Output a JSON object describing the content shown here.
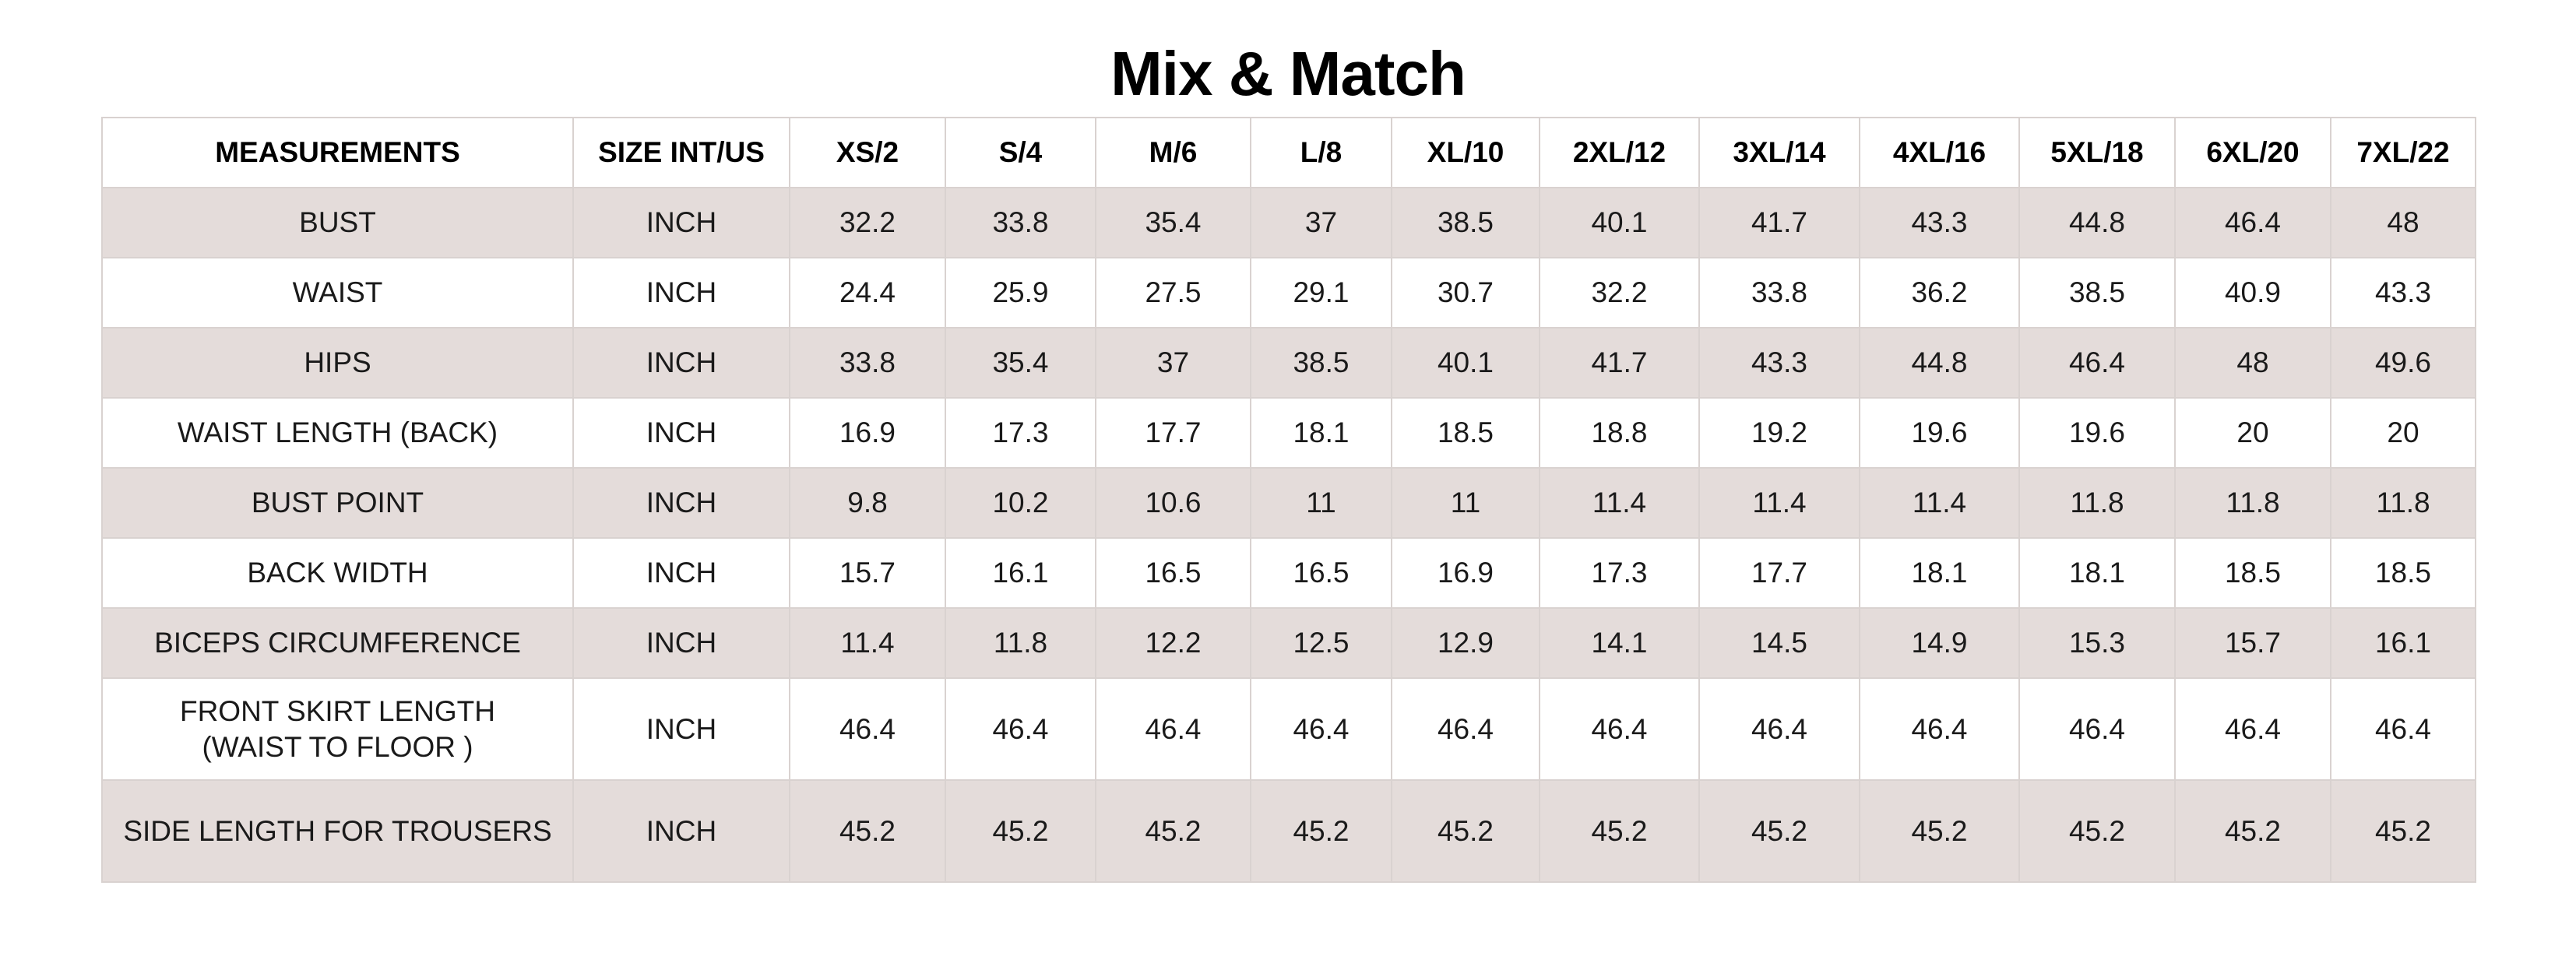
{
  "title": "Mix & Match",
  "table": {
    "headers": [
      "MEASUREMENTS",
      "SIZE INT/US",
      "XS/2",
      "S/4",
      "M/6",
      "L/8",
      "XL/10",
      "2XL/12",
      "3XL/14",
      "4XL/16",
      "5XL/18",
      "6XL/20",
      "7XL/22"
    ],
    "rows": [
      {
        "label": "BUST",
        "unit": "INCH",
        "values": [
          "32.2",
          "33.8",
          "35.4",
          "37",
          "38.5",
          "40.1",
          "41.7",
          "43.3",
          "44.8",
          "46.4",
          "48"
        ]
      },
      {
        "label": "WAIST",
        "unit": "INCH",
        "values": [
          "24.4",
          "25.9",
          "27.5",
          "29.1",
          "30.7",
          "32.2",
          "33.8",
          "36.2",
          "38.5",
          "40.9",
          "43.3"
        ]
      },
      {
        "label": "HIPS",
        "unit": "INCH",
        "values": [
          "33.8",
          "35.4",
          "37",
          "38.5",
          "40.1",
          "41.7",
          "43.3",
          "44.8",
          "46.4",
          "48",
          "49.6"
        ]
      },
      {
        "label": "WAIST LENGTH (BACK)",
        "unit": "INCH",
        "values": [
          "16.9",
          "17.3",
          "17.7",
          "18.1",
          "18.5",
          "18.8",
          "19.2",
          "19.6",
          "19.6",
          "20",
          "20"
        ]
      },
      {
        "label": "BUST POINT",
        "unit": "INCH",
        "values": [
          "9.8",
          "10.2",
          "10.6",
          "11",
          "11",
          "11.4",
          "11.4",
          "11.4",
          "11.8",
          "11.8",
          "11.8"
        ]
      },
      {
        "label": "BACK WIDTH",
        "unit": "INCH",
        "values": [
          "15.7",
          "16.1",
          "16.5",
          "16.5",
          "16.9",
          "17.3",
          "17.7",
          "18.1",
          "18.1",
          "18.5",
          "18.5"
        ]
      },
      {
        "label": "BICEPS CIRCUMFERENCE",
        "unit": "INCH",
        "values": [
          "11.4",
          "11.8",
          "12.2",
          "12.5",
          "12.9",
          "14.1",
          "14.5",
          "14.9",
          "15.3",
          "15.7",
          "16.1"
        ]
      },
      {
        "label": "FRONT SKIRT LENGTH",
        "label_line2": "(WAIST TO FLOOR )",
        "unit": "INCH",
        "values": [
          "46.4",
          "46.4",
          "46.4",
          "46.4",
          "46.4",
          "46.4",
          "46.4",
          "46.4",
          "46.4",
          "46.4",
          "46.4"
        ]
      },
      {
        "label": "SIDE LENGTH FOR TROUSERS",
        "unit": "INCH",
        "values": [
          "45.2",
          "45.2",
          "45.2",
          "45.2",
          "45.2",
          "45.2",
          "45.2",
          "45.2",
          "45.2",
          "45.2",
          "45.2"
        ]
      }
    ]
  },
  "colors": {
    "row_shade": "#e4dcda",
    "row_plain": "#ffffff",
    "grid_line": "#d9d2d0",
    "title_text": "#000000"
  }
}
